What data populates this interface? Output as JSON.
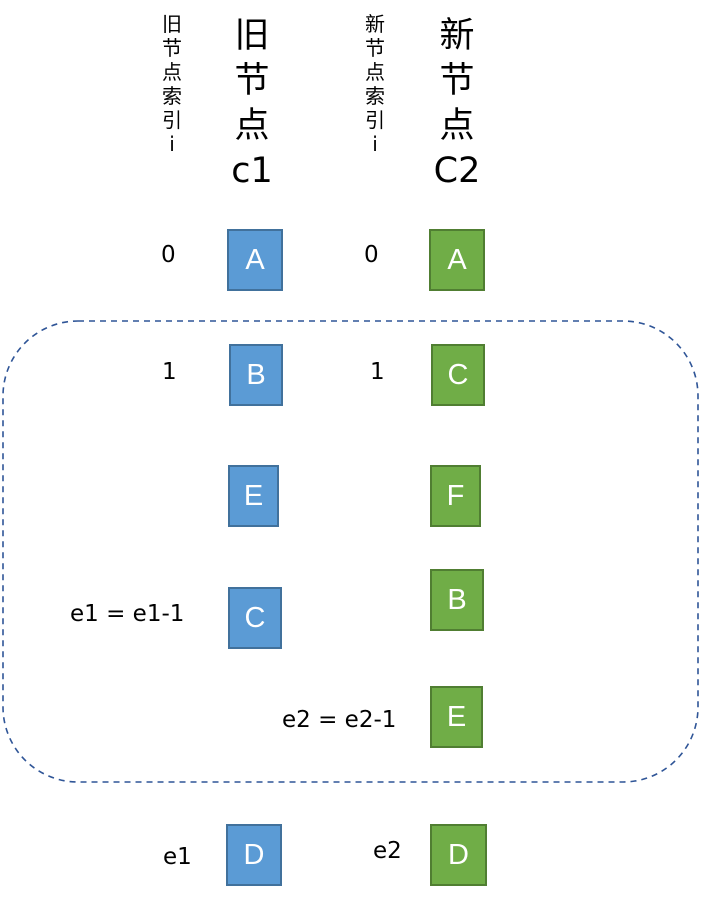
{
  "headers": {
    "old_index": "旧\n节\n点\n索\n引\ni",
    "old_nodes": "旧\n节\n点\nc1",
    "new_index": "新\n节\n点\n索\n引\ni",
    "new_nodes": "新\n节\n点\nC2"
  },
  "old_column": {
    "labels": [
      "0",
      "1",
      "e1 = e1-1",
      "e1"
    ],
    "nodes": [
      "A",
      "B",
      "E",
      "C",
      "D"
    ]
  },
  "new_column": {
    "labels": [
      "0",
      "1",
      "e2 = e2-1",
      "e2"
    ],
    "nodes": [
      "A",
      "C",
      "F",
      "B",
      "E",
      "D"
    ]
  },
  "colors": {
    "old_node_fill": "#5b9bd5",
    "new_node_fill": "#70ad47",
    "group_border": "#2f5597"
  }
}
